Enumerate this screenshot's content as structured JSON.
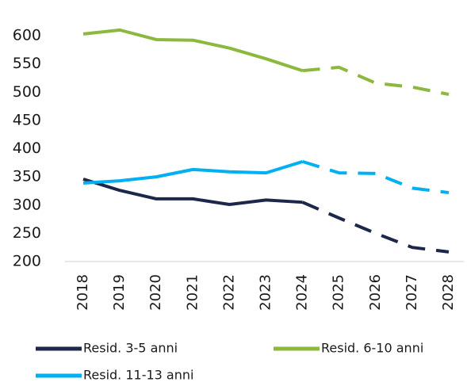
{
  "chart_data": {
    "type": "line",
    "categories": [
      "2018",
      "2019",
      "2020",
      "2021",
      "2022",
      "2023",
      "2024",
      "2025",
      "2026",
      "2027",
      "2028"
    ],
    "series": [
      {
        "name": "Resid. 3-5 anni",
        "color": "#1c2749",
        "values": [
          346,
          326,
          311,
          311,
          301,
          309,
          305,
          277,
          250,
          225,
          217
        ]
      },
      {
        "name": "Resid. 6-10 anni",
        "color": "#8cb83e",
        "values": [
          603,
          610,
          593,
          592,
          578,
          559,
          538,
          544,
          516,
          509,
          496
        ]
      },
      {
        "name": "Resid. 11-13 anni",
        "color": "#00b0f0",
        "values": [
          339,
          343,
          350,
          363,
          359,
          357,
          377,
          357,
          356,
          330,
          322
        ]
      }
    ],
    "dashed_from": "2024",
    "ylim": [
      200,
      600
    ],
    "yticks": [
      200,
      250,
      300,
      350,
      400,
      450,
      500,
      550,
      600
    ],
    "grid": false
  }
}
